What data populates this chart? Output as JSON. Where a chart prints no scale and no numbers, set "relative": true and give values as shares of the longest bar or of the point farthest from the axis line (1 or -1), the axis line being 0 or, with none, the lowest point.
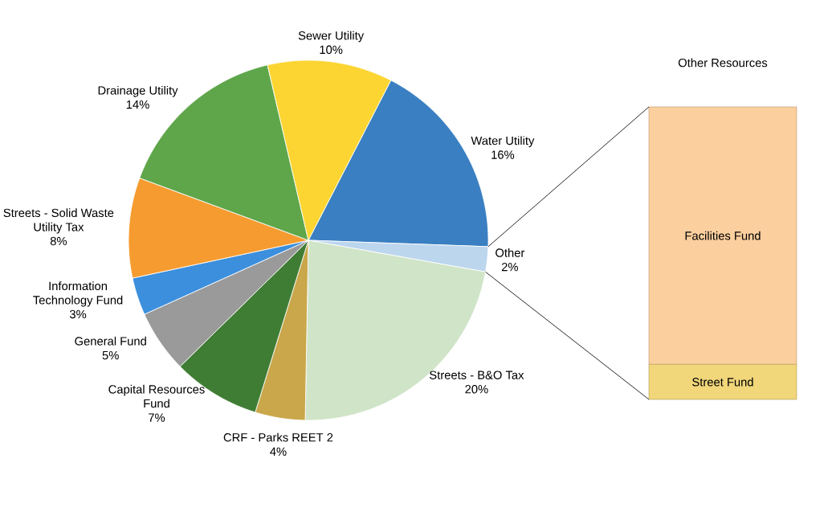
{
  "chart_data": [
    {
      "type": "pie",
      "categories": [
        "Water Utility",
        "Other",
        "Streets - B&O Tax",
        "CRF - Parks REET 2",
        "Capital Resources Fund",
        "General Fund",
        "Information Technology Fund",
        "Streets - Solid Waste Utility Tax",
        "Drainage Utility",
        "Sewer Utility"
      ],
      "values": [
        16,
        2,
        20,
        4,
        7,
        5,
        3,
        8,
        14,
        10
      ],
      "value_labels": [
        "16%",
        "2%",
        "20%",
        "4%",
        "7%",
        "5%",
        "3%",
        "8%",
        "14%",
        "10%"
      ],
      "colors": [
        "#3a7fc1",
        "#bcd6ee",
        "#d0e4c8",
        "#c9a74a",
        "#3f7d34",
        "#9a9a9a",
        "#3c8fdc",
        "#f59b2f",
        "#5fa64b",
        "#fcd533"
      ]
    },
    {
      "type": "bar",
      "title": "Other Resources",
      "stacked": true,
      "relative": true,
      "categories": [
        null
      ],
      "series": [
        {
          "name": "Street Fund",
          "color": "#f1d67a",
          "values": [
            0.12
          ]
        },
        {
          "name": "Facilities Fund",
          "color": "#fccf9e",
          "values": [
            0.88
          ]
        }
      ]
    }
  ]
}
